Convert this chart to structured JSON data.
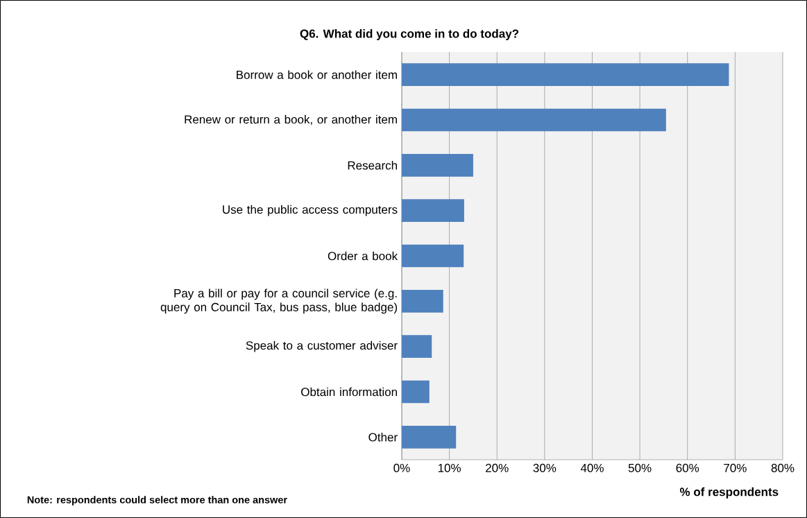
{
  "chart_data": {
    "type": "bar",
    "orientation": "horizontal",
    "title": "Q6. What did you come in to do today?",
    "xlabel": "% of respondents",
    "categories": [
      "Borrow a book or another item",
      "Renew or return a book, or another item",
      "Research",
      "Use the public access computers",
      "Order a book",
      "Pay a bill or pay for a council service (e.g. query on Council Tax, bus pass, blue badge)",
      "Speak to a customer adviser",
      "Obtain information",
      "Other"
    ],
    "values": [
      68.7,
      55.5,
      15.0,
      13.1,
      13.0,
      8.7,
      6.3,
      5.8,
      11.4
    ],
    "color": "#4f81bd",
    "xlim": [
      0,
      80
    ],
    "xticks": [
      {
        "value": 0,
        "label": "0%"
      },
      {
        "value": 10,
        "label": "10%"
      },
      {
        "value": 20,
        "label": "20%"
      },
      {
        "value": 30,
        "label": "30%"
      },
      {
        "value": 40,
        "label": "40%"
      },
      {
        "value": 50,
        "label": "50%"
      },
      {
        "value": 60,
        "label": "60%"
      },
      {
        "value": 70,
        "label": "70%"
      },
      {
        "value": 80,
        "label": "80%"
      }
    ],
    "grid": "x",
    "annotations": [
      "Note: respondents could select more than one answer"
    ]
  }
}
